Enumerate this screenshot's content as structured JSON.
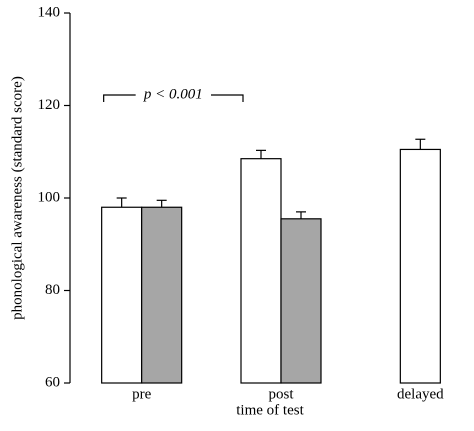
{
  "chart_data": {
    "type": "bar",
    "x_label": "time of test",
    "y_label": "phonological awareness (standard score)",
    "annotation": "p < 0.001",
    "categories": [
      "pre",
      "post",
      "delayed"
    ],
    "series": [
      {
        "color": "#ffffff",
        "values": [
          98,
          108.5,
          110.5
        ],
        "errors": [
          2,
          1.8,
          2.2
        ]
      },
      {
        "color": "#a6a6a6",
        "values": [
          98,
          95.5,
          null
        ],
        "errors": [
          1.5,
          1.5,
          null
        ]
      }
    ],
    "ylim": [
      60,
      140
    ],
    "yticks": [
      60,
      80,
      100,
      120,
      140
    ]
  }
}
